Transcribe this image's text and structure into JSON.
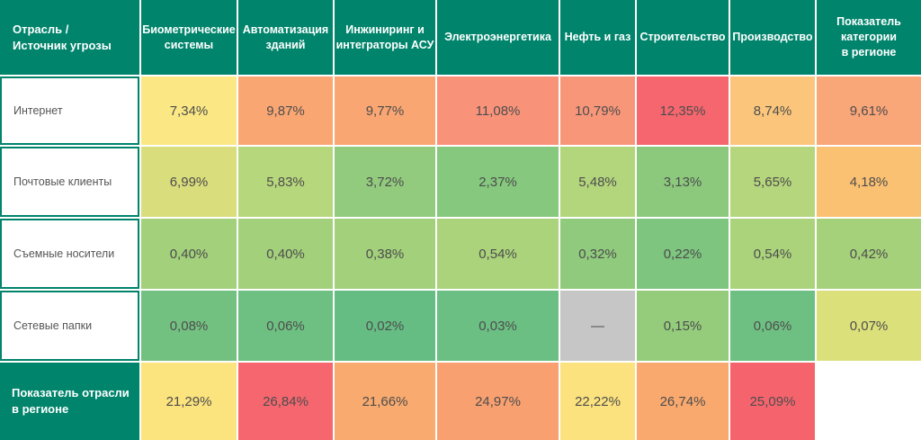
{
  "colors": {
    "header_bg": "#00846c",
    "header_text": "#ffffff",
    "label_text": "#555555",
    "value_text": "#4d4d4d",
    "empty_cell": "#c6c6c6",
    "grid_line": "#ffffff"
  },
  "table": {
    "corner_label": "Отрасль /\nИсточник угрозы",
    "columns": [
      "Биометрические\nсистемы",
      "Автоматизация\nзданий",
      "Инжиниринг и\nинтеграторы АСУ",
      "Электроэнергетика",
      "Нефть и газ",
      "Строительство",
      "Производство",
      "Показатель\nкатегории\nв регионе"
    ],
    "rows": [
      {
        "label": "Интернет",
        "cells": [
          {
            "value": "7,34%",
            "bg": "#fbe884"
          },
          {
            "value": "9,87%",
            "bg": "#f9a673"
          },
          {
            "value": "9,77%",
            "bg": "#f9a673"
          },
          {
            "value": "11,08%",
            "bg": "#f8937a"
          },
          {
            "value": "10,79%",
            "bg": "#f8967a"
          },
          {
            "value": "12,35%",
            "bg": "#f5666e"
          },
          {
            "value": "8,74%",
            "bg": "#fbc67b"
          },
          {
            "value": "9,61%",
            "bg": "#f9a678"
          }
        ]
      },
      {
        "label": "Почтовые клиенты",
        "cells": [
          {
            "value": "6,99%",
            "bg": "#d9dd7c"
          },
          {
            "value": "5,83%",
            "bg": "#b7d77c"
          },
          {
            "value": "3,72%",
            "bg": "#92cb7d"
          },
          {
            "value": "2,37%",
            "bg": "#86c87e"
          },
          {
            "value": "5,48%",
            "bg": "#b3d57c"
          },
          {
            "value": "3,13%",
            "bg": "#8cc97d"
          },
          {
            "value": "5,65%",
            "bg": "#b5d67c"
          },
          {
            "value": "4,18%",
            "bg": "#fbc173"
          }
        ]
      },
      {
        "label": "Съемные носители",
        "cells": [
          {
            "value": "0,40%",
            "bg": "#a3d07b"
          },
          {
            "value": "0,40%",
            "bg": "#a3d07b"
          },
          {
            "value": "0,38%",
            "bg": "#a2d07b"
          },
          {
            "value": "0,54%",
            "bg": "#aad37b"
          },
          {
            "value": "0,32%",
            "bg": "#90ca7d"
          },
          {
            "value": "0,22%",
            "bg": "#7ec57f"
          },
          {
            "value": "0,54%",
            "bg": "#abd37b"
          },
          {
            "value": "0,42%",
            "bg": "#a6d17b"
          }
        ]
      },
      {
        "label": "Сетевые папки",
        "cells": [
          {
            "value": "0,08%",
            "bg": "#73c181"
          },
          {
            "value": "0,06%",
            "bg": "#6ec082"
          },
          {
            "value": "0,02%",
            "bg": "#65bd84"
          },
          {
            "value": "0,03%",
            "bg": "#6bbf83"
          },
          {
            "value": "—",
            "bg": "#c6c6c6"
          },
          {
            "value": "0,15%",
            "bg": "#94cc7c"
          },
          {
            "value": "0,06%",
            "bg": "#6ec082"
          },
          {
            "value": "0,07%",
            "bg": "#dce07b"
          }
        ]
      },
      {
        "label": "Показатель отрасли\nв регионе",
        "cells": [
          {
            "value": "21,29%",
            "bg": "#fbe37e"
          },
          {
            "value": "26,84%",
            "bg": "#f5666e"
          },
          {
            "value": "21,66%",
            "bg": "#f9aa6e"
          },
          {
            "value": "24,97%",
            "bg": "#f9a070"
          },
          {
            "value": "22,22%",
            "bg": "#fbe27e"
          },
          {
            "value": "26,74%",
            "bg": "#f9a96d"
          },
          {
            "value": "25,09%",
            "bg": "#f5646d"
          },
          {
            "value": "",
            "bg": "#ffffff"
          }
        ]
      }
    ]
  },
  "chart_data": {
    "type": "heatmap",
    "title": "Отрасль / Источник угрозы",
    "columns": [
      "Биометрические системы",
      "Автоматизация зданий",
      "Инжиниринг и интеграторы АСУ",
      "Электроэнергетика",
      "Нефть и газ",
      "Строительство",
      "Производство",
      "Показатель категории в регионе"
    ],
    "rows": [
      "Интернет",
      "Почтовые клиенты",
      "Съемные носители",
      "Сетевые папки",
      "Показатель отрасли в регионе"
    ],
    "unit": "%",
    "values": [
      [
        7.34,
        9.87,
        9.77,
        11.08,
        10.79,
        12.35,
        8.74,
        9.61
      ],
      [
        6.99,
        5.83,
        3.72,
        2.37,
        5.48,
        3.13,
        5.65,
        4.18
      ],
      [
        0.4,
        0.4,
        0.38,
        0.54,
        0.32,
        0.22,
        0.54,
        0.42
      ],
      [
        0.08,
        0.06,
        0.02,
        0.03,
        null,
        0.15,
        0.06,
        0.07
      ],
      [
        21.29,
        26.84,
        21.66,
        24.97,
        22.22,
        26.74,
        25.09,
        null
      ]
    ],
    "legend_position": "none",
    "color_scale": [
      "#65bd84",
      "#a3d07b",
      "#dce07b",
      "#fbe884",
      "#fbc67b",
      "#f9a673",
      "#f5666e"
    ]
  }
}
